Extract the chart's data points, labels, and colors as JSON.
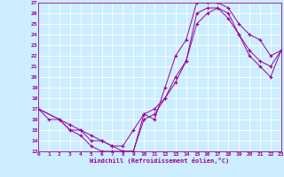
{
  "xlabel": "Windchill (Refroidissement éolien,°C)",
  "bg_color": "#cceeff",
  "grid_color": "#ffffff",
  "line_color": "#990099",
  "xmin": 0,
  "xmax": 23,
  "ymin": 13,
  "ymax": 27,
  "curve1_x": [
    0,
    1,
    2,
    3,
    4,
    5,
    6,
    7,
    8,
    9,
    10,
    11,
    12,
    13,
    14,
    15,
    16,
    17,
    18,
    19,
    20,
    21,
    22,
    23
  ],
  "curve1_y": [
    17,
    16,
    16,
    15,
    14.5,
    13.5,
    13,
    13,
    13,
    13,
    16.5,
    16,
    19,
    22,
    23.5,
    27,
    27,
    27,
    26.5,
    25,
    24,
    23.5,
    22,
    22.5
  ],
  "curve2_x": [
    0,
    2,
    3,
    4,
    5,
    6,
    7,
    8,
    9,
    10,
    11,
    12,
    13,
    14,
    15,
    16,
    17,
    18,
    19,
    20,
    21,
    22,
    23
  ],
  "curve2_y": [
    17,
    16,
    15,
    15,
    14,
    14,
    13.5,
    13,
    13,
    16,
    16.5,
    18,
    19.5,
    21.5,
    26,
    26.5,
    26.5,
    26,
    24,
    22,
    21,
    20,
    22.5
  ],
  "curve3_x": [
    0,
    2,
    3,
    4,
    5,
    6,
    7,
    8,
    9,
    10,
    11,
    12,
    13,
    14,
    15,
    16,
    17,
    18,
    19,
    20,
    21,
    22,
    23
  ],
  "curve3_y": [
    17,
    16,
    15.5,
    15,
    14.5,
    14,
    13.5,
    13.5,
    15,
    16.5,
    17,
    18,
    20,
    21.5,
    25,
    26,
    26.5,
    25.5,
    24,
    22.5,
    21.5,
    21,
    22.5
  ]
}
